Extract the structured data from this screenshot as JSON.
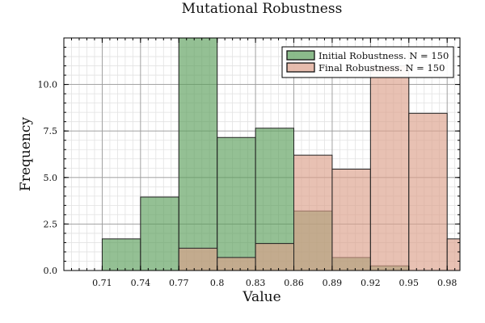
{
  "chart_data": {
    "type": "histogram",
    "title": "Mutational Robustness",
    "xlabel": "Value",
    "ylabel": "Frequency",
    "xlim": [
      0.68,
      0.99
    ],
    "ylim": [
      0,
      12.5
    ],
    "grid": true,
    "legend_position": "top-right",
    "x_ticks": [
      0.71,
      0.74,
      0.77,
      0.8,
      0.83,
      0.86,
      0.89,
      0.92,
      0.95,
      0.98
    ],
    "x_tick_labels": [
      "0.71",
      "0.74",
      "0.77",
      "0.8",
      "0.83",
      "0.86",
      "0.89",
      "0.92",
      "0.95",
      "0.98"
    ],
    "y_ticks": [
      0,
      2.5,
      5,
      7.5,
      10
    ],
    "y_tick_labels": [
      "0.0",
      "2.5",
      "5.0",
      "7.5",
      "10.0"
    ],
    "series": [
      {
        "name": "Initial Robustness. N = 150",
        "color": "#5a9e5a",
        "bins": [
          {
            "x0": 0.71,
            "x1": 0.74,
            "value": 1.7
          },
          {
            "x0": 0.74,
            "x1": 0.77,
            "value": 3.95
          },
          {
            "x0": 0.77,
            "x1": 0.8,
            "value": 12.5
          },
          {
            "x0": 0.8,
            "x1": 0.83,
            "value": 7.15
          },
          {
            "x0": 0.83,
            "x1": 0.86,
            "value": 7.65
          },
          {
            "x0": 0.86,
            "x1": 0.89,
            "value": 3.2
          },
          {
            "x0": 0.89,
            "x1": 0.92,
            "value": 0.7
          },
          {
            "x0": 0.92,
            "x1": 0.95,
            "value": 0.25
          }
        ]
      },
      {
        "name": "Final Robustness. N = 150",
        "color": "#dc9f8a",
        "bins": [
          {
            "x0": 0.77,
            "x1": 0.8,
            "value": 1.2
          },
          {
            "x0": 0.8,
            "x1": 0.83,
            "value": 0.7
          },
          {
            "x0": 0.83,
            "x1": 0.86,
            "value": 1.45
          },
          {
            "x0": 0.86,
            "x1": 0.89,
            "value": 6.2
          },
          {
            "x0": 0.89,
            "x1": 0.92,
            "value": 5.45
          },
          {
            "x0": 0.92,
            "x1": 0.95,
            "value": 11.0
          },
          {
            "x0": 0.95,
            "x1": 0.98,
            "value": 8.45
          },
          {
            "x0": 0.98,
            "x1": 1.01,
            "value": 1.7
          }
        ]
      }
    ]
  }
}
